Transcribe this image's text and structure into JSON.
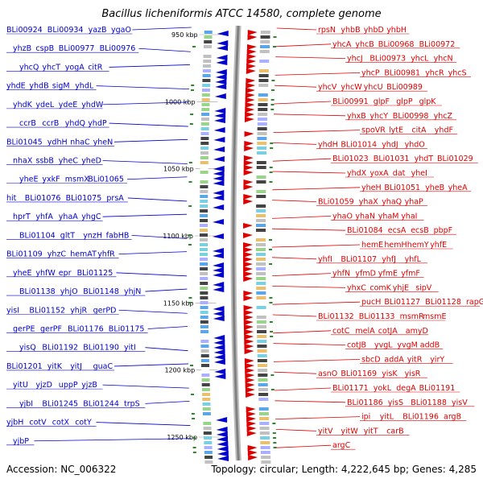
{
  "title": "Bacillus licheniformis ATCC 14580, complete genome",
  "footer": {
    "accession": "Accession: NC_006322",
    "summary": "Topology: circular; Length: 4,222,645 bp; Genes: 4,285"
  },
  "colors": {
    "forward": "#dd0000",
    "reverse": "#0000cc",
    "backbone": "#808080"
  },
  "map": {
    "strand_orientation": {
      "reverse": "left-of-backbone",
      "forward": "right-of-backbone"
    },
    "kbp_ticks": [
      {
        "label": "950 kbp",
        "kbp": 950
      },
      {
        "label": "1000 kbp",
        "kbp": 1000
      },
      {
        "label": "1050 kbp",
        "kbp": 1050
      },
      {
        "label": "1100 kbp",
        "kbp": 1100
      },
      {
        "label": "1150 kbp",
        "kbp": 1150
      },
      {
        "label": "1200 kbp",
        "kbp": 1200
      },
      {
        "label": "1250 kbp",
        "kbp": 1250
      }
    ],
    "left_labels": [
      "BLi00924",
      "BLi00934",
      "yazB",
      "ygaO",
      "yhzB",
      "cspB",
      "BLi00977",
      "BLi00976",
      "yhcQ",
      "yhcT",
      "yogA",
      "citR",
      "yhdE",
      "yhdB",
      "sigM",
      "yhdL",
      "yhdK",
      "ydeL",
      "ydeE",
      "yhdW",
      "ccrB",
      "ccrB",
      "yhdQ",
      "yhdP",
      "BLi01045",
      "ydhH",
      "nhaC",
      "yheN",
      "nhaX",
      "ssbB",
      "yheC",
      "yheD",
      "yheE",
      "yxkF",
      "msmX",
      "BLi01065",
      "hit",
      "BLi01076",
      "BLi01075",
      "prsA",
      "hprT",
      "yhfA",
      "yhaA",
      "yhgC",
      "BLi01104",
      "gltT",
      "ynzH",
      "fabHB",
      "BLi01109",
      "yhzC",
      "hemAT",
      "yhfR",
      "yheE",
      "yhfW",
      "epr",
      "BLi01125",
      "BLi01138",
      "yhjO",
      "BLi01148",
      "yhjN",
      "yisI",
      "BLi01152",
      "yhjR",
      "gerPD",
      "gerPE",
      "gerPF",
      "BLi01176",
      "BLi01175",
      "yisQ",
      "BLi01192",
      "BLi01190",
      "yitI",
      "BLi01201",
      "yitK",
      "yitJ",
      "guaC",
      "yitU",
      "yjzD",
      "uppP",
      "yjzB",
      "yjbI",
      "BLi01245",
      "BLi01244",
      "trpS",
      "yjbH",
      "cotV",
      "cotX",
      "cotY",
      "yjbP"
    ],
    "right_labels": [
      "rpsN",
      "yhbB",
      "yhbD",
      "yhbH",
      "yhcA",
      "yhcB",
      "BLi00968",
      "BLi00972",
      "yhcJ",
      "BLi00973",
      "yhcL",
      "yhcN",
      "yhcP",
      "BLi00981",
      "yhcR",
      "yhcS",
      "yhcV",
      "yhcW",
      "yhcU",
      "BLi00989",
      "BLi00991",
      "glpF",
      "glpP",
      "glpK",
      "yhxB",
      "yhcY",
      "BLi00998",
      "yhcZ",
      "spoVR",
      "lytE",
      "citA",
      "yhdF",
      "yhdH",
      "BLi01014",
      "yhdJ",
      "yhdO",
      "BLi01023",
      "BLi01031",
      "yhdT",
      "BLi01029",
      "yhdX",
      "yoxA",
      "dat",
      "yheI",
      "yheH",
      "BLi01051",
      "yheB",
      "yheA",
      "BLi01059",
      "yhaX",
      "yhaQ",
      "yhaP",
      "yhaO",
      "yhaN",
      "yhaM",
      "yhaI",
      "BLi01084",
      "ecsA",
      "ecsB",
      "pbpF",
      "hemE",
      "hemH",
      "hemY",
      "yhfE",
      "yhfI",
      "BLi01107",
      "yhfJ",
      "yhfL",
      "yhfN",
      "yfmD",
      "yfmE",
      "yfmF",
      "yhxC",
      "comK",
      "yhjE",
      "sipV",
      "pucH",
      "BLi01127",
      "BLi01128",
      "rapG",
      "BLi01132",
      "BLi01133",
      "msmR",
      "msmE",
      "cotC",
      "melA",
      "cotJA",
      "amyD",
      "cotJB",
      "yvgL",
      "yvgM",
      "addB",
      "sbcD",
      "addA",
      "yitR",
      "yirY",
      "asnO",
      "BLi01169",
      "yisK",
      "yisR",
      "BLi01171",
      "yokL",
      "degA",
      "BLi01191",
      "BLi01186",
      "yisS",
      "BLi01188",
      "yisV",
      "ipi",
      "yitL",
      "BLi01196",
      "argB",
      "yitV",
      "yitW",
      "yitT",
      "carB",
      "argC"
    ]
  }
}
